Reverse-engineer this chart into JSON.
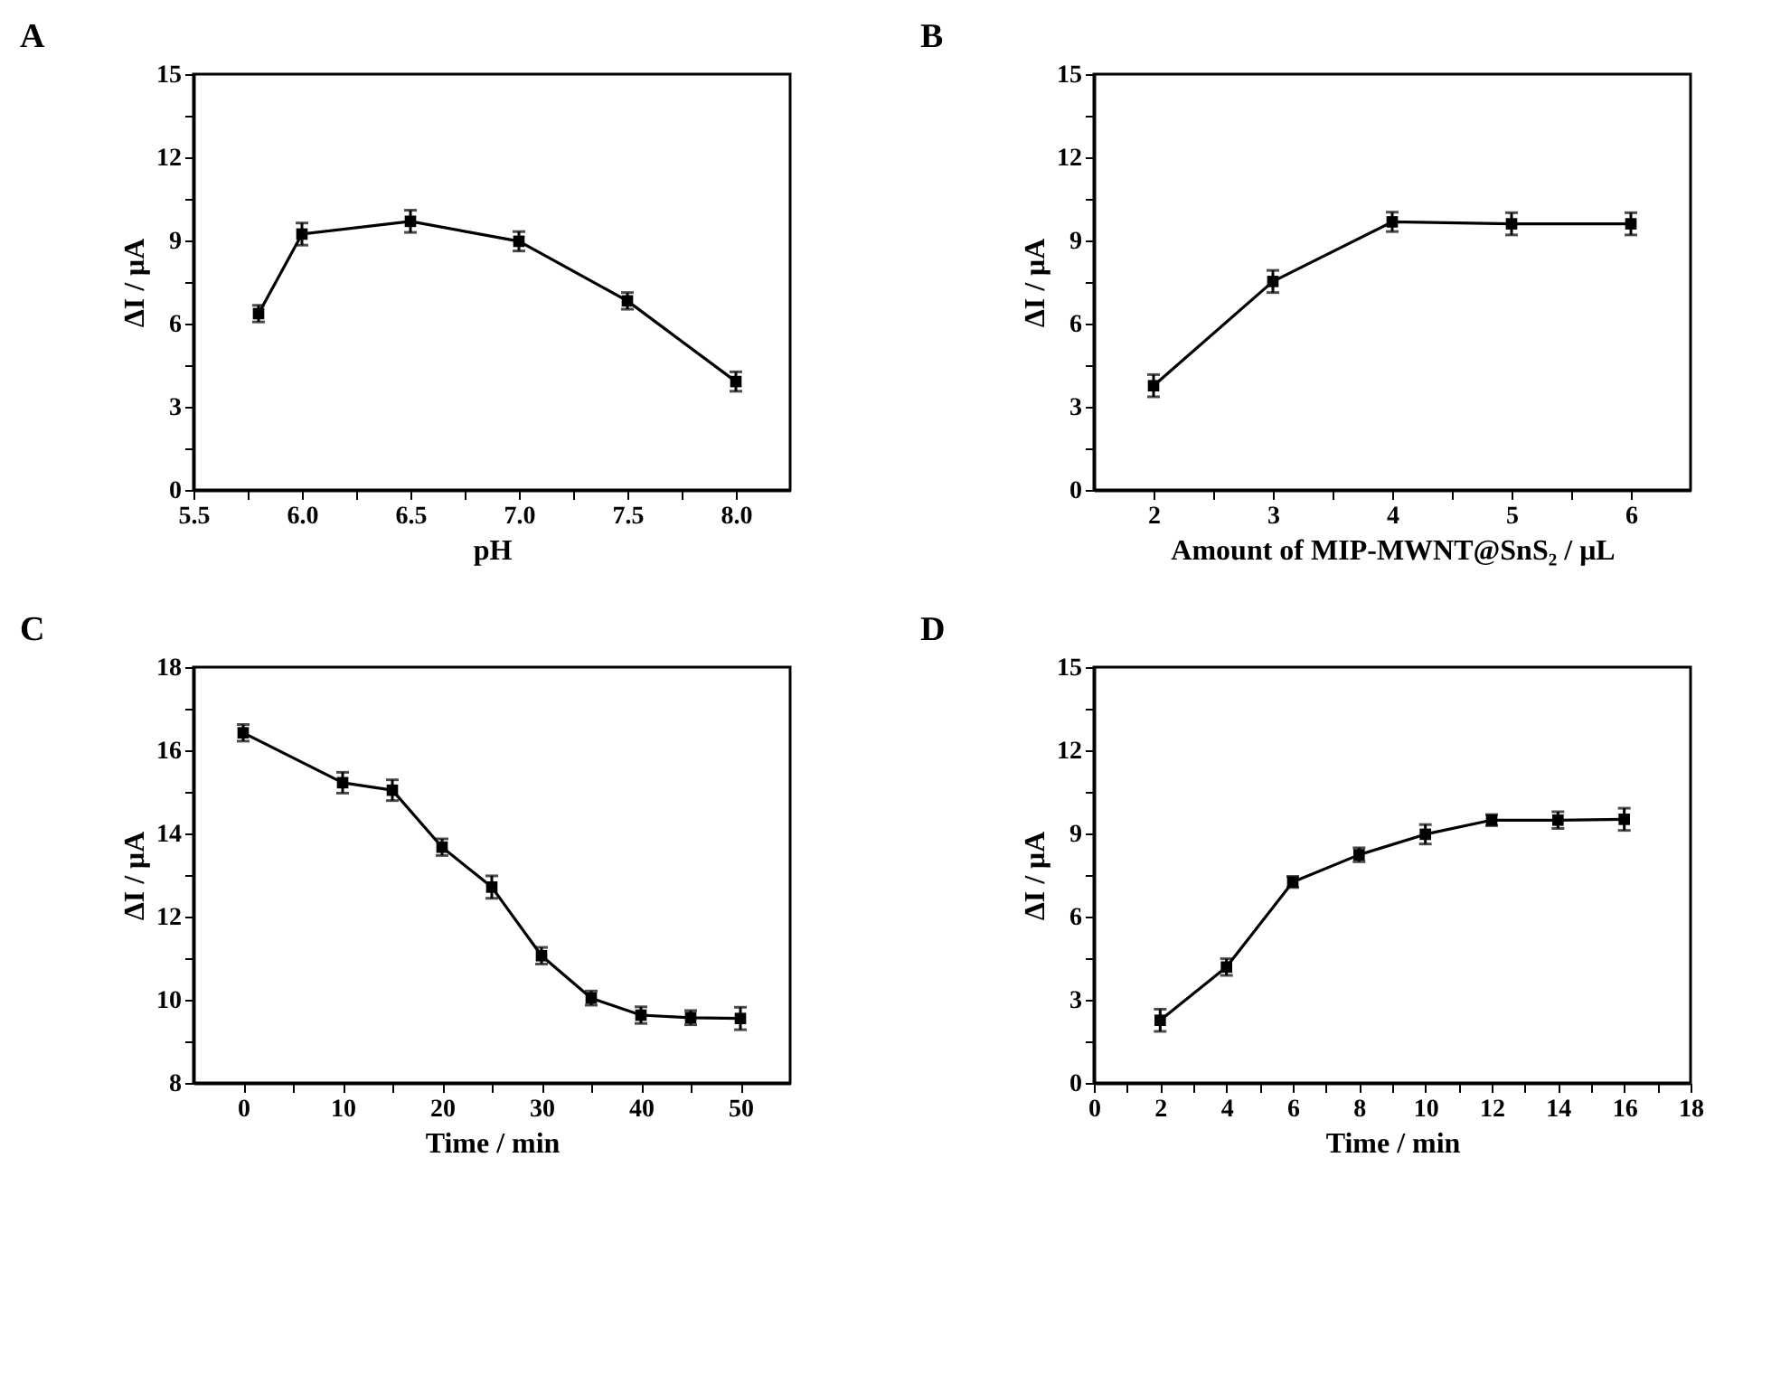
{
  "chart_data": [
    {
      "type": "line",
      "title": "A",
      "xlabel": "pH",
      "ylabel": "ΔI / μA",
      "marker": "square",
      "line_style": "solid",
      "grid": false,
      "legend": false,
      "x": [
        5.8,
        6.0,
        6.5,
        7.0,
        7.5,
        8.0
      ],
      "series": [
        {
          "color": "#000000",
          "values": [
            6.36,
            9.23,
            9.69,
            8.97,
            6.82,
            3.91
          ],
          "errors": [
            0.3,
            0.4,
            0.4,
            0.35,
            0.3,
            0.35
          ]
        }
      ],
      "xlim": [
        5.5,
        8.25
      ],
      "xticks": [
        5.5,
        {
          "value": 5.75,
          "label": null
        },
        {
          "value": 6,
          "label": "6.0"
        },
        {
          "value": 6.25,
          "label": null
        },
        6.5,
        {
          "value": 6.75,
          "label": null
        },
        {
          "value": 7,
          "label": "7.0"
        },
        {
          "value": 7.25,
          "label": null
        },
        7.5,
        {
          "value": 7.75,
          "label": null
        },
        {
          "value": 8,
          "label": "8.0"
        }
      ],
      "ylim": [
        0,
        15
      ],
      "yticks": [
        0,
        {
          "value": 1.5,
          "label": null
        },
        3,
        {
          "value": 4.5,
          "label": null
        },
        6,
        {
          "value": 7.5,
          "label": null
        },
        9,
        {
          "value": 10.5,
          "label": null
        },
        12,
        {
          "value": 13.5,
          "label": null
        },
        15
      ]
    },
    {
      "type": "line",
      "title": "B",
      "xlabel": "Amount of MIP-MWNT@SnS₂ / μL",
      "ylabel": "ΔI / μA",
      "marker": "square",
      "line_style": "solid",
      "grid": false,
      "legend": false,
      "x": [
        2,
        3,
        4,
        5,
        6
      ],
      "series": [
        {
          "color": "#000000",
          "values": [
            3.76,
            7.52,
            9.67,
            9.6,
            9.6
          ],
          "errors": [
            0.4,
            0.4,
            0.35,
            0.4,
            0.4
          ]
        }
      ],
      "xlim": [
        1.5,
        6.5
      ],
      "xticks": [
        2,
        {
          "value": 2.5,
          "label": null
        },
        3,
        {
          "value": 3.5,
          "label": null
        },
        4,
        {
          "value": 4.5,
          "label": null
        },
        5,
        {
          "value": 5.5,
          "label": null
        },
        6
      ],
      "ylim": [
        0,
        15
      ],
      "yticks": [
        0,
        {
          "value": 1.5,
          "label": null
        },
        3,
        {
          "value": 4.5,
          "label": null
        },
        6,
        {
          "value": 7.5,
          "label": null
        },
        9,
        {
          "value": 10.5,
          "label": null
        },
        12,
        {
          "value": 13.5,
          "label": null
        },
        15
      ]
    },
    {
      "type": "line",
      "title": "C",
      "xlabel": "Time / min",
      "ylabel": "ΔI / μA",
      "marker": "square",
      "line_style": "solid",
      "grid": false,
      "legend": false,
      "x": [
        0,
        10,
        15,
        20,
        25,
        30,
        35,
        40,
        45,
        50
      ],
      "series": [
        {
          "color": "#000000",
          "values": [
            16.42,
            15.22,
            15.04,
            13.67,
            12.71,
            11.06,
            10.04,
            9.63,
            9.57,
            9.55
          ],
          "errors": [
            0.2,
            0.25,
            0.25,
            0.2,
            0.27,
            0.2,
            0.17,
            0.2,
            0.17,
            0.27
          ]
        }
      ],
      "xlim": [
        -5,
        55
      ],
      "xticks": [
        0,
        {
          "value": 5,
          "label": null
        },
        10,
        {
          "value": 15,
          "label": null
        },
        20,
        {
          "value": 25,
          "label": null
        },
        30,
        {
          "value": 35,
          "label": null
        },
        40,
        {
          "value": 45,
          "label": null
        },
        50
      ],
      "ylim": [
        8,
        18
      ],
      "yticks": [
        8,
        {
          "value": 9,
          "label": null
        },
        10,
        {
          "value": 11,
          "label": null
        },
        12,
        {
          "value": 13,
          "label": null
        },
        14,
        {
          "value": 15,
          "label": null
        },
        16,
        {
          "value": 17,
          "label": null
        },
        18
      ]
    },
    {
      "type": "line",
      "title": "D",
      "xlabel": "Time / min",
      "ylabel": "ΔI / μA",
      "marker": "square",
      "line_style": "solid",
      "grid": false,
      "legend": false,
      "x": [
        2,
        4,
        6,
        8,
        10,
        12,
        14,
        16
      ],
      "series": [
        {
          "color": "#000000",
          "values": [
            2.26,
            4.18,
            7.25,
            8.23,
            8.97,
            9.48,
            9.48,
            9.51
          ],
          "errors": [
            0.4,
            0.3,
            0.2,
            0.25,
            0.35,
            0.2,
            0.3,
            0.4
          ]
        }
      ],
      "xlim": [
        0,
        18
      ],
      "xticks": [
        0,
        {
          "value": 1,
          "label": null
        },
        2,
        {
          "value": 3,
          "label": null
        },
        4,
        {
          "value": 5,
          "label": null
        },
        6,
        {
          "value": 7,
          "label": null
        },
        8,
        {
          "value": 9,
          "label": null
        },
        10,
        {
          "value": 11,
          "label": null
        },
        12,
        {
          "value": 13,
          "label": null
        },
        14,
        {
          "value": 15,
          "label": null
        },
        16,
        {
          "value": 17,
          "label": null
        },
        18
      ],
      "ylim": [
        0,
        15
      ],
      "yticks": [
        0,
        {
          "value": 1.5,
          "label": null
        },
        3,
        {
          "value": 4.5,
          "label": null
        },
        6,
        {
          "value": 7.5,
          "label": null
        },
        9,
        {
          "value": 10.5,
          "label": null
        },
        12,
        {
          "value": 13.5,
          "label": null
        },
        15
      ]
    }
  ]
}
